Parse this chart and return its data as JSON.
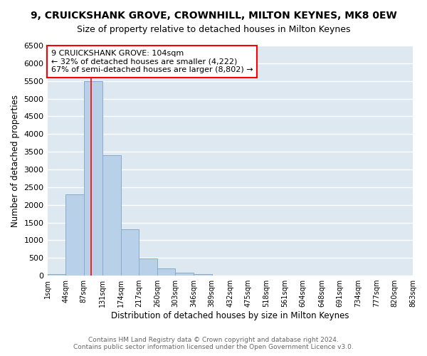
{
  "title": "9, CRUICKSHANK GROVE, CROWNHILL, MILTON KEYNES, MK8 0EW",
  "subtitle": "Size of property relative to detached houses in Milton Keynes",
  "xlabel": "Distribution of detached houses by size in Milton Keynes",
  "ylabel": "Number of detached properties",
  "bin_edges": [
    1,
    44,
    87,
    131,
    174,
    217,
    260,
    303,
    346,
    389,
    432,
    475,
    518,
    561,
    604,
    648,
    691,
    734,
    777,
    820,
    863
  ],
  "bin_counts": [
    50,
    2300,
    5500,
    3400,
    1300,
    480,
    195,
    90,
    50,
    0,
    0,
    0,
    0,
    0,
    0,
    0,
    0,
    0,
    0,
    0
  ],
  "bar_color": "#b8d0e8",
  "bar_edgecolor": "#88aacc",
  "red_line_x": 104,
  "annotation_box_text": "9 CRUICKSHANK GROVE: 104sqm\n← 32% of detached houses are smaller (4,222)\n67% of semi-detached houses are larger (8,802) →",
  "ylim": [
    0,
    6500
  ],
  "xlim": [
    1,
    863
  ],
  "xtick_labels": [
    "1sqm",
    "44sqm",
    "87sqm",
    "131sqm",
    "174sqm",
    "217sqm",
    "260sqm",
    "303sqm",
    "346sqm",
    "389sqm",
    "432sqm",
    "475sqm",
    "518sqm",
    "561sqm",
    "604sqm",
    "648sqm",
    "691sqm",
    "734sqm",
    "777sqm",
    "820sqm",
    "863sqm"
  ],
  "xtick_positions": [
    1,
    44,
    87,
    131,
    174,
    217,
    260,
    303,
    346,
    389,
    432,
    475,
    518,
    561,
    604,
    648,
    691,
    734,
    777,
    820,
    863
  ],
  "ytick_values": [
    0,
    500,
    1000,
    1500,
    2000,
    2500,
    3000,
    3500,
    4000,
    4500,
    5000,
    5500,
    6000,
    6500
  ],
  "footer_line1": "Contains HM Land Registry data © Crown copyright and database right 2024.",
  "footer_line2": "Contains public sector information licensed under the Open Government Licence v3.0.",
  "fig_bg_color": "#ffffff",
  "plot_bg_color": "#dde8f0",
  "grid_color": "#ffffff",
  "title_fontsize": 10,
  "subtitle_fontsize": 9,
  "tick_fontsize": 7,
  "label_fontsize": 8.5,
  "footer_fontsize": 6.5
}
